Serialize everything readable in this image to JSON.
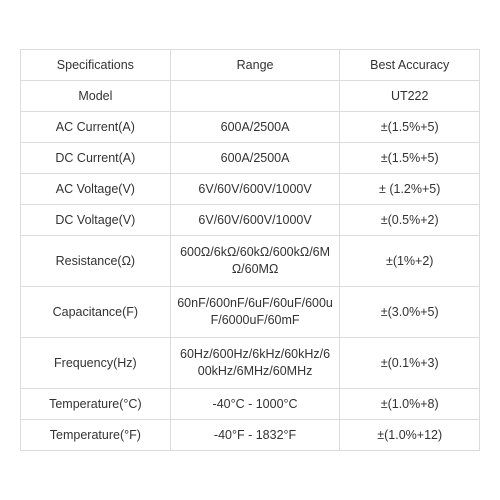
{
  "table": {
    "border_color": "#dcdcdc",
    "text_color": "#333333",
    "background_color": "#ffffff",
    "font_size": 12.5,
    "columns": [
      {
        "key": "spec",
        "header": "Specifications",
        "width": 150
      },
      {
        "key": "range",
        "header": "Range",
        "width": 170
      },
      {
        "key": "acc",
        "header": "Best Accuracy",
        "width": 140
      }
    ],
    "rows": [
      {
        "spec": "Specifications",
        "range": "Range",
        "acc": "Best Accuracy"
      },
      {
        "spec": "Model",
        "range": "",
        "acc": "UT222"
      },
      {
        "spec": "AC Current(A)",
        "range": "600A/2500A",
        "acc": "±(1.5%+5)"
      },
      {
        "spec": "DC Current(A)",
        "range": "600A/2500A",
        "acc": "±(1.5%+5)"
      },
      {
        "spec": "AC Voltage(V)",
        "range": "6V/60V/600V/1000V",
        "acc": "± (1.2%+5)"
      },
      {
        "spec": "DC Voltage(V)",
        "range": "6V/60V/600V/1000V",
        "acc": "±(0.5%+2)"
      },
      {
        "spec": "Resistance(Ω)",
        "range": "600Ω/6kΩ/60kΩ/600kΩ/6MΩ/60MΩ",
        "acc": "±(1%+2)"
      },
      {
        "spec": "Capacitance(F)",
        "range": "60nF/600nF/6uF/60uF/600uF/6000uF/60mF",
        "acc": "±(3.0%+5)"
      },
      {
        "spec": "Frequency(Hz)",
        "range": "60Hz/600Hz/6kHz/60kHz/600kHz/6MHz/60MHz",
        "acc": "±(0.1%+3)"
      },
      {
        "spec": "Temperature(°C)",
        "range": "-40°C -  1000°C",
        "acc": "±(1.0%+8)"
      },
      {
        "spec": "Temperature(°F)",
        "range": "-40°F - 1832°F",
        "acc": "±(1.0%+12)"
      }
    ]
  }
}
